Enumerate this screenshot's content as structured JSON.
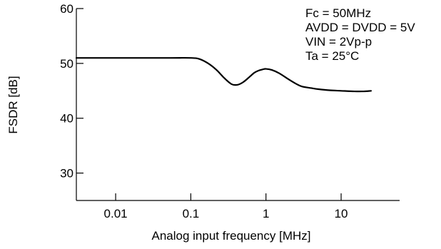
{
  "chart_data": {
    "type": "line",
    "title": "",
    "xlabel": "Analog input frequency [MHz]",
    "ylabel": "FSDR [dB]",
    "x_scale": "log",
    "xlim": [
      0.003,
      60
    ],
    "ylim": [
      25,
      60
    ],
    "x_ticks": [
      0.01,
      0.1,
      1,
      10
    ],
    "x_tick_labels": [
      "0.01",
      "0.1",
      "1",
      "10"
    ],
    "y_ticks": [
      30,
      40,
      50,
      60
    ],
    "y_tick_labels": [
      "30",
      "40",
      "50",
      "60"
    ],
    "grid": false,
    "conditions": [
      {
        "id": "fc",
        "text": "Fc = 50MHz"
      },
      {
        "id": "avdd",
        "text": "AVDD = DVDD = 5V"
      },
      {
        "id": "vin",
        "text": "VIN = 2Vp-p"
      },
      {
        "id": "ta",
        "text": "Ta = 25°C"
      }
    ],
    "series": [
      {
        "x": [
          0.003,
          0.01,
          0.05,
          0.1,
          0.13,
          0.17,
          0.22,
          0.28,
          0.35,
          0.42,
          0.5,
          0.6,
          0.7,
          0.8,
          0.9,
          1.0,
          1.2,
          1.5,
          2.0,
          2.5,
          3.0,
          4.0,
          5.0,
          7.0,
          10,
          15,
          20,
          25
        ],
        "y": [
          51.0,
          51.0,
          51.0,
          51.0,
          50.8,
          50.0,
          48.8,
          47.3,
          46.2,
          46.1,
          46.6,
          47.5,
          48.3,
          48.7,
          48.9,
          49.0,
          48.8,
          48.2,
          47.1,
          46.3,
          45.8,
          45.5,
          45.3,
          45.1,
          45.0,
          44.9,
          44.9,
          45.0
        ],
        "color": "#000000"
      }
    ]
  }
}
